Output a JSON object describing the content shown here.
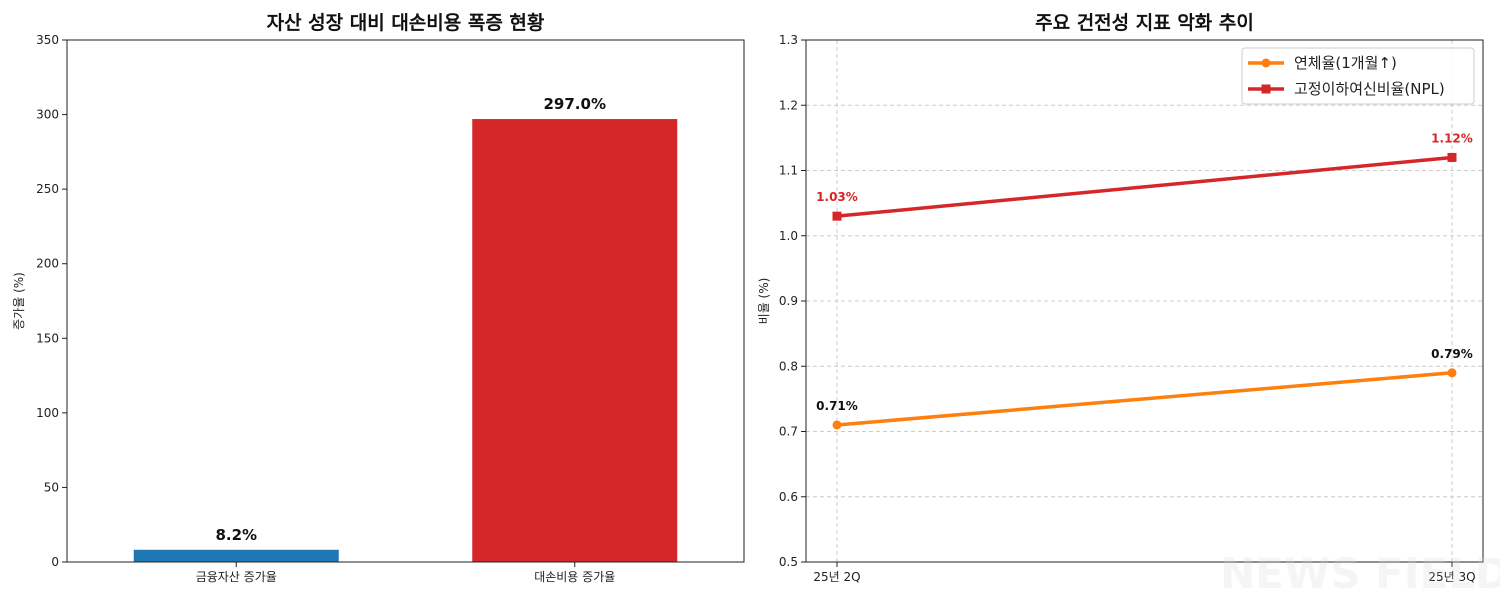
{
  "chart_data": [
    {
      "type": "bar",
      "title": "자산 성장 대비 대손비용 폭증 현황",
      "xlabel": "",
      "ylabel": "증가율 (%)",
      "categories": [
        "금융자산 증가율",
        "대손비용 증가율"
      ],
      "values": [
        8.2,
        297.0
      ],
      "value_labels": [
        "8.2%",
        "297.0%"
      ],
      "colors": [
        "#1f77b4",
        "#d62728"
      ],
      "ylim": [
        0,
        350
      ],
      "yticks": [
        "0",
        "50",
        "100",
        "150",
        "200",
        "250",
        "300",
        "350"
      ],
      "grid": false
    },
    {
      "type": "line",
      "title": "주요 건전성 지표 악화 추이",
      "xlabel": "",
      "ylabel": "비율 (%)",
      "categories": [
        "25년 2Q",
        "25년 3Q"
      ],
      "ylim": [
        0.5,
        1.3
      ],
      "yticks": [
        "0.5",
        "0.6",
        "0.7",
        "0.8",
        "0.9",
        "1.0",
        "1.1",
        "1.2",
        "1.3"
      ],
      "grid": true,
      "legend_position": "top-right",
      "series": [
        {
          "name": "연체율(1개월↑)",
          "values": [
            0.71,
            0.79
          ],
          "labels": [
            "0.71%",
            "0.79%"
          ],
          "color": "#ff7f0e",
          "label_color": "#111111",
          "marker": "circle"
        },
        {
          "name": "고정이하여신비율(NPL)",
          "values": [
            1.03,
            1.12
          ],
          "labels": [
            "1.03%",
            "1.12%"
          ],
          "color": "#d62728",
          "label_color": "#d62728",
          "marker": "square"
        }
      ]
    }
  ],
  "watermark": "NEWS FIELD"
}
